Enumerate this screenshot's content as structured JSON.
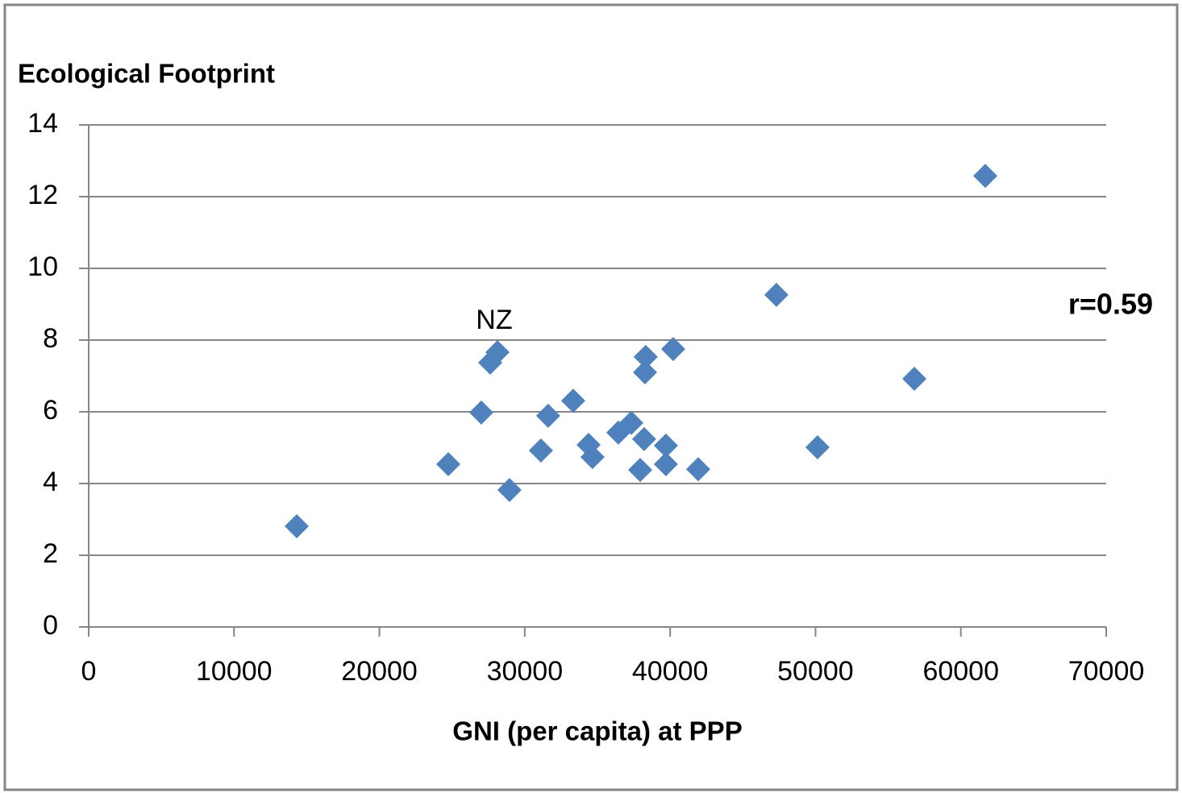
{
  "chart_data": {
    "type": "scatter",
    "y_label": "Ecological Footprint",
    "x_label": "GNI (per capita) at PPP",
    "x": [
      14310,
      24740,
      27010,
      27620,
      28120,
      28950,
      31110,
      31610,
      33330,
      34390,
      34660,
      36440,
      37330,
      37940,
      38270,
      38210,
      38320,
      39710,
      39710,
      40210,
      41930,
      47310,
      50140,
      56800,
      61680
    ],
    "series": [
      {
        "color": "#4f81bd",
        "values": [
          2.81,
          4.54,
          5.98,
          7.37,
          7.66,
          3.82,
          4.92,
          5.89,
          6.31,
          5.08,
          4.74,
          5.42,
          5.69,
          4.38,
          7.1,
          5.24,
          7.53,
          5.06,
          4.54,
          7.75,
          4.4,
          9.26,
          5.01,
          6.92,
          12.58
        ]
      }
    ],
    "annotations": [
      {
        "text": "NZ"
      },
      {
        "text": "r=0.59"
      }
    ],
    "xlim": [
      0,
      70000
    ],
    "xticks": [
      0,
      10000,
      20000,
      30000,
      40000,
      50000,
      60000,
      70000
    ],
    "ylim": [
      0,
      14
    ],
    "yticks": [
      0,
      2,
      4,
      6,
      8,
      10,
      12,
      14
    ],
    "grid": true
  }
}
